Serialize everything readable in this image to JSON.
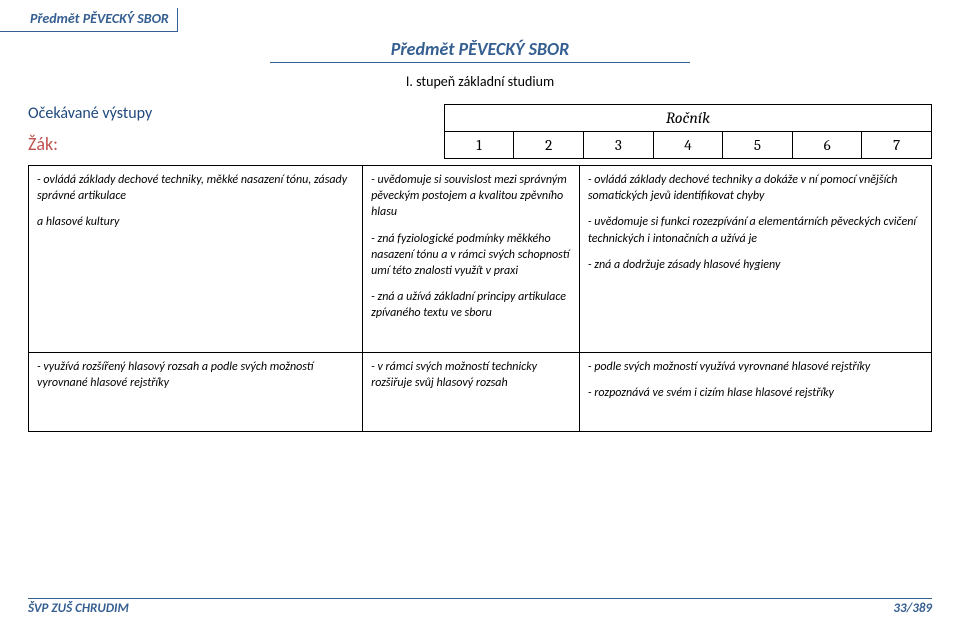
{
  "header": {
    "tag": "Předmět PĚVECKÝ SBOR",
    "title": "Předmět PĚVECKÝ SBOR",
    "subtitle": "I. stupeň základní studium"
  },
  "labels": {
    "ocekavane": "Očekávané výstupy",
    "zak": "Žák:",
    "rocnik": "Ročník"
  },
  "grades": [
    "1",
    "2",
    "3",
    "4",
    "5",
    "6",
    "7"
  ],
  "rows": [
    {
      "left": [
        "- ovládá základy dechové techniky, měkké nasazení tónu, zásady správné artikulace",
        "a hlasové kultury"
      ],
      "mid": [
        "- uvědomuje si souvislost mezi správným pěveckým postojem a kvalitou zpěvního hlasu",
        "- zná fyziologické podmínky měkkého nasazení tónu a v rámci svých schopností umí této znalosti využít v praxi",
        "- zná a užívá základní principy artikulace zpívaného textu ve sboru"
      ],
      "right": [
        "- ovládá základy dechové techniky a dokáže v ní pomocí vnějších somatických jevů identifikovat chyby",
        "- uvědomuje si funkci rozezpívání a elementárních pěveckých cvičení technických i intonačních a užívá je",
        "- zná a dodržuje zásady hlasové hygieny"
      ]
    },
    {
      "left": [
        "- využívá rozšířený hlasový rozsah a podle svých možností vyrovnané hlasové rejstříky"
      ],
      "mid": [
        "- v rámci svých možností technicky rozšiřuje svůj hlasový rozsah"
      ],
      "right": [
        "- podle svých možností využívá vyrovnané hlasové rejstříky",
        "- rozpoznává ve svém i cizím hlase hlasové rejstříky"
      ]
    }
  ],
  "footer": {
    "left": "ŠVP ZUŠ CHRUDIM",
    "right": "33/389"
  },
  "colors": {
    "heading_blue": "#365f91",
    "label_blue": "#1f497d",
    "zak_red": "#c0504d",
    "border": "#000000",
    "background": "#ffffff"
  },
  "fonts": {
    "body": "Calibri",
    "serif": "Cambria",
    "title_size_pt": 14,
    "cell_size_pt": 9
  }
}
